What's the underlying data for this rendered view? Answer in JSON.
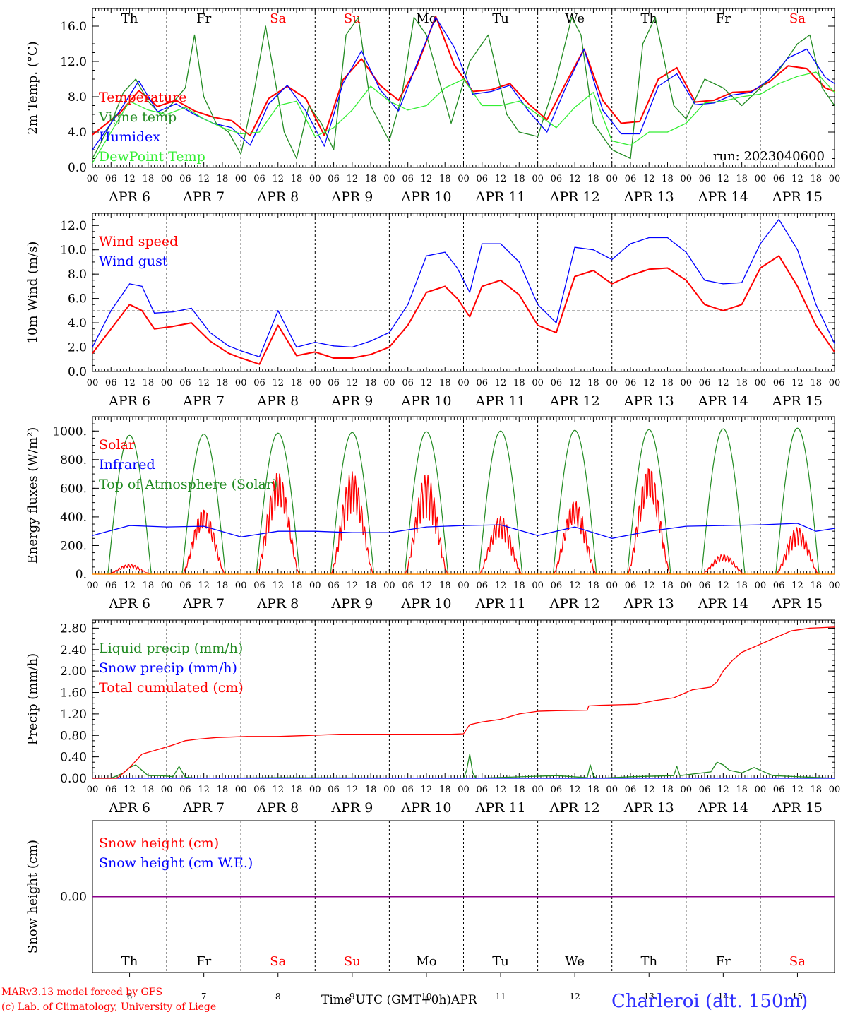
{
  "meta": {
    "run_label": "run: 2023040600",
    "credit_line1": "MARv3.13 model forced by GFS",
    "credit_line2": "(c) Lab. of Climatology, University of Liege",
    "time_axis_label": "Time UTC (GMT+0h)",
    "month_label": "APR",
    "station": "Charleroi (alt. 150m)"
  },
  "colors": {
    "red": "#ff0000",
    "green": "#228b22",
    "blue": "#0000ff",
    "lightgreen": "#33ee33",
    "weekend": "#ff0000",
    "purple": "#8b008b"
  },
  "days": {
    "names": [
      "Th",
      "Fr",
      "Sa",
      "Su",
      "Mo",
      "Tu",
      "We",
      "Th",
      "Fr",
      "Sa"
    ],
    "weekend": [
      false,
      false,
      true,
      true,
      false,
      false,
      false,
      false,
      false,
      true
    ],
    "dates": [
      "6",
      "7",
      "8",
      "9",
      "10",
      "11",
      "12",
      "13",
      "14",
      "15"
    ],
    "date_labels": [
      "APR  6",
      "APR  7",
      "APR  8",
      "APR  9",
      "APR 10",
      "APR 11",
      "APR 12",
      "APR 13",
      "APR 14",
      "APR 15"
    ],
    "hour_ticks": [
      "00",
      "06",
      "12",
      "18"
    ],
    "end_tick": "00"
  },
  "chart_data": [
    {
      "type": "line",
      "ylabel": "2m Temp. (°C)",
      "x_unit": "hours since 2023-04-06 00 UTC",
      "ylim": [
        0,
        18
      ],
      "yticks": [
        0,
        4,
        8,
        12,
        16
      ],
      "ytick_labels": [
        "0.0",
        "4.0",
        "8.0",
        "12.0",
        "16.0"
      ],
      "series": [
        {
          "name": "Temperature",
          "color": "#ff0000",
          "x": [
            0,
            9,
            15,
            21,
            27,
            33,
            39,
            45,
            51,
            57,
            63,
            69,
            75,
            81,
            87,
            93,
            99,
            105,
            111,
            117,
            123,
            129,
            135,
            141,
            147,
            153,
            159,
            165,
            171,
            177,
            183,
            189,
            195,
            201,
            207,
            213,
            219,
            225,
            231,
            237,
            240
          ],
          "y": [
            3.7,
            6.2,
            8.7,
            6.9,
            7.6,
            6.4,
            5.7,
            5.3,
            3.6,
            7.8,
            9.2,
            7.8,
            3.6,
            9.9,
            12.3,
            9.3,
            7.6,
            11.5,
            17.1,
            11.6,
            8.6,
            8.8,
            9.5,
            7.2,
            5.4,
            9.5,
            13.4,
            7.6,
            5.0,
            5.2,
            10.0,
            11.3,
            7.4,
            7.6,
            8.5,
            8.6,
            9.7,
            11.5,
            11.2,
            9.0,
            8.6
          ]
        },
        {
          "name": "Vigne temp",
          "color": "#228b22",
          "x": [
            0,
            6,
            10,
            14,
            18,
            22,
            24,
            30,
            33,
            36,
            40,
            44,
            48,
            52,
            56,
            62,
            66,
            70,
            74,
            78,
            82,
            86,
            90,
            96,
            100,
            104,
            108,
            112,
            116,
            122,
            128,
            134,
            138,
            144,
            150,
            155,
            158,
            162,
            168,
            174,
            178,
            182,
            188,
            192,
            198,
            204,
            210,
            216,
            222,
            228,
            232,
            236,
            240
          ],
          "y": [
            1.0,
            5.0,
            8.5,
            10.0,
            7.5,
            6.0,
            6.5,
            9.0,
            15.0,
            8.0,
            5.0,
            4.0,
            1.5,
            8.0,
            16.0,
            4.0,
            1.0,
            7.0,
            5.0,
            2.0,
            15.0,
            17.0,
            7.0,
            3.0,
            8.0,
            17.0,
            15.0,
            10.0,
            5.0,
            12.0,
            15.0,
            6.0,
            4.0,
            3.5,
            10.0,
            17.0,
            15.0,
            5.0,
            2.0,
            1.0,
            14.0,
            17.0,
            7.0,
            5.5,
            10.0,
            9.0,
            7.0,
            9.0,
            11.0,
            14.0,
            15.0,
            9.0,
            7.0
          ]
        },
        {
          "name": "Humidex",
          "color": "#0000ff",
          "x": [
            0,
            9,
            15,
            21,
            27,
            33,
            39,
            45,
            51,
            57,
            63,
            69,
            75,
            81,
            87,
            93,
            99,
            105,
            111,
            117,
            123,
            129,
            135,
            141,
            147,
            153,
            159,
            165,
            171,
            177,
            183,
            189,
            195,
            201,
            207,
            213,
            219,
            225,
            231,
            237,
            240
          ],
          "y": [
            2.0,
            6.5,
            9.8,
            6.3,
            7.2,
            6.0,
            5.0,
            4.5,
            2.5,
            7.2,
            9.3,
            6.4,
            2.4,
            9.5,
            13.2,
            8.8,
            6.4,
            11.8,
            17.0,
            13.6,
            8.3,
            8.6,
            9.3,
            6.4,
            4.0,
            9.0,
            13.4,
            6.5,
            3.8,
            3.8,
            9.2,
            10.6,
            7.1,
            7.3,
            8.2,
            8.5,
            10.0,
            12.4,
            13.4,
            10.2,
            9.5
          ]
        },
        {
          "name": "DewPoint Temp",
          "color": "#33ee33",
          "x": [
            0,
            12,
            18,
            24,
            30,
            36,
            42,
            48,
            54,
            60,
            66,
            72,
            78,
            84,
            90,
            96,
            102,
            108,
            114,
            120,
            126,
            132,
            138,
            144,
            150,
            156,
            162,
            168,
            174,
            180,
            186,
            192,
            198,
            204,
            210,
            216,
            222,
            228,
            234,
            240
          ],
          "y": [
            0.5,
            7.5,
            6.5,
            6.0,
            6.8,
            5.5,
            4.5,
            3.8,
            4.0,
            7.0,
            7.5,
            3.5,
            4.5,
            6.5,
            9.2,
            7.5,
            6.5,
            7.0,
            9.0,
            10.0,
            7.0,
            7.0,
            7.5,
            6.0,
            4.5,
            6.8,
            8.5,
            3.0,
            2.5,
            4.0,
            4.0,
            5.0,
            7.3,
            7.5,
            8.0,
            8.3,
            9.5,
            10.3,
            10.8,
            8.5
          ]
        }
      ],
      "weekend_day_label_color": "#ff0000"
    },
    {
      "type": "line",
      "ylabel": "10m Wind (m/s)",
      "x_unit": "hours since 2023-04-06 00 UTC",
      "ylim": [
        0,
        13
      ],
      "yticks": [
        0,
        2,
        4,
        6,
        8,
        10,
        12
      ],
      "ytick_labels": [
        "0.0",
        "2.0",
        "4.0",
        "6.0",
        "8.0",
        "10.0",
        "12.0"
      ],
      "reference_line": 5.0,
      "series": [
        {
          "name": "Wind speed",
          "color": "#ff0000",
          "x": [
            0,
            6,
            12,
            16,
            20,
            26,
            32,
            38,
            44,
            48,
            54,
            60,
            66,
            72,
            78,
            84,
            90,
            96,
            102,
            108,
            114,
            118,
            122,
            126,
            132,
            138,
            144,
            150,
            156,
            162,
            168,
            174,
            180,
            186,
            192,
            198,
            204,
            210,
            216,
            222,
            228,
            234,
            240
          ],
          "y": [
            1.5,
            3.5,
            5.5,
            5.0,
            3.5,
            3.7,
            4.0,
            2.5,
            1.5,
            1.1,
            0.6,
            3.8,
            1.3,
            1.6,
            1.1,
            1.1,
            1.4,
            2.0,
            3.8,
            6.5,
            7.0,
            6.0,
            4.5,
            7.0,
            7.5,
            6.3,
            3.8,
            3.2,
            7.8,
            8.3,
            7.2,
            7.9,
            8.4,
            8.5,
            7.5,
            5.5,
            5.0,
            5.5,
            8.5,
            9.5,
            7.0,
            3.8,
            1.6
          ]
        },
        {
          "name": "Wind gust",
          "color": "#0000ff",
          "x": [
            0,
            6,
            12,
            16,
            20,
            26,
            32,
            38,
            44,
            48,
            54,
            60,
            66,
            72,
            78,
            84,
            90,
            96,
            102,
            108,
            114,
            118,
            122,
            126,
            132,
            138,
            144,
            150,
            156,
            162,
            168,
            174,
            180,
            186,
            192,
            198,
            204,
            210,
            216,
            222,
            228,
            234,
            240
          ],
          "y": [
            2.0,
            5.0,
            7.2,
            7.0,
            4.8,
            4.9,
            5.2,
            3.2,
            2.1,
            1.7,
            1.2,
            5.0,
            2.0,
            2.4,
            2.1,
            2.0,
            2.5,
            3.2,
            5.5,
            9.5,
            9.8,
            8.5,
            6.5,
            10.5,
            10.5,
            9.0,
            5.5,
            4.0,
            10.2,
            10.0,
            9.2,
            10.5,
            11.0,
            11.0,
            9.8,
            7.5,
            7.2,
            7.3,
            10.5,
            12.5,
            10.0,
            5.5,
            2.3
          ]
        }
      ]
    },
    {
      "type": "line",
      "ylabel": "Energy fluxes (W/m²)",
      "x_unit": "hours since 2023-04-06 00 UTC",
      "ylim": [
        0,
        1100
      ],
      "yticks": [
        0,
        200,
        400,
        600,
        800,
        1000
      ],
      "ytick_labels": [
        "0.",
        "200.",
        "400.",
        "600.",
        "800.",
        "1000."
      ],
      "series": [
        {
          "name": "Solar",
          "color": "#ff0000",
          "daily_peak": [
            70,
            460,
            720,
            720,
            700,
            410,
            520,
            760,
            140,
            330
          ]
        },
        {
          "name": "Infrared",
          "color": "#0000ff",
          "x": [
            0,
            12,
            24,
            36,
            48,
            60,
            72,
            84,
            96,
            108,
            120,
            132,
            144,
            156,
            168,
            180,
            192,
            204,
            216,
            228,
            234,
            240
          ],
          "y": [
            270,
            340,
            330,
            335,
            260,
            300,
            300,
            290,
            290,
            330,
            340,
            345,
            270,
            330,
            250,
            300,
            335,
            340,
            345,
            355,
            300,
            320
          ]
        },
        {
          "name": "Top of Atmosphere (Solar)",
          "color": "#228b22",
          "daily_peak": [
            970,
            978,
            985,
            990,
            995,
            1000,
            1005,
            1010,
            1015,
            1020
          ]
        }
      ]
    },
    {
      "type": "line",
      "ylabel": "Precip (mm/h)",
      "x_unit": "hours since 2023-04-06 00 UTC",
      "ylim": [
        0,
        2.95
      ],
      "yticks": [
        0,
        0.4,
        0.8,
        1.2,
        1.6,
        2.0,
        2.4,
        2.8
      ],
      "ytick_labels": [
        "0.00",
        "0.40",
        "0.80",
        "1.20",
        "1.60",
        "2.00",
        "2.40",
        "2.80"
      ],
      "series": [
        {
          "name": "Liquid precip (mm/h)",
          "color": "#228b22",
          "x": [
            0,
            6,
            10,
            12,
            14,
            16,
            18,
            22,
            26,
            28,
            30,
            34,
            60,
            120,
            121,
            122,
            123,
            124,
            150,
            160,
            161,
            162,
            163,
            175,
            188,
            189,
            190,
            200,
            202,
            204,
            206,
            210,
            214,
            220,
            240
          ],
          "y": [
            0,
            0,
            0.1,
            0.2,
            0.25,
            0.15,
            0.05,
            0.05,
            0.03,
            0.22,
            0.02,
            0,
            0.01,
            0,
            0.15,
            0.45,
            0.1,
            0,
            0.05,
            0.01,
            0.25,
            0.05,
            0,
            0.03,
            0.05,
            0.22,
            0.05,
            0.12,
            0.3,
            0.25,
            0.15,
            0.1,
            0.2,
            0.05,
            0
          ]
        },
        {
          "name": "Snow precip (mm/h)",
          "color": "#0000ff",
          "x": [
            0,
            240
          ],
          "y": [
            0,
            0
          ]
        },
        {
          "name": "Total cumulated (cm)",
          "color": "#ff0000",
          "x": [
            0,
            8,
            12,
            16,
            22,
            26,
            30,
            34,
            40,
            50,
            60,
            70,
            80,
            90,
            100,
            110,
            116,
            120,
            122,
            126,
            132,
            138,
            144,
            150,
            160,
            160.5,
            164,
            176,
            182,
            188,
            192,
            194,
            200,
            202,
            204,
            207,
            210,
            214,
            220,
            226,
            232,
            240
          ],
          "y": [
            0,
            0,
            0.2,
            0.45,
            0.55,
            0.62,
            0.7,
            0.73,
            0.76,
            0.78,
            0.78,
            0.8,
            0.82,
            0.82,
            0.82,
            0.82,
            0.82,
            0.83,
            1.0,
            1.05,
            1.1,
            1.2,
            1.25,
            1.26,
            1.27,
            1.35,
            1.36,
            1.38,
            1.45,
            1.5,
            1.6,
            1.65,
            1.7,
            1.8,
            2.0,
            2.2,
            2.35,
            2.45,
            2.6,
            2.75,
            2.8,
            2.82
          ]
        }
      ]
    },
    {
      "type": "line",
      "ylabel": "Snow height (cm)",
      "x_unit": "hours since 2023-04-06 00 UTC",
      "ylim": [
        -1,
        1
      ],
      "yticks": [
        0
      ],
      "ytick_labels": [
        "0.00"
      ],
      "series": [
        {
          "name": "Snow height (cm)",
          "color": "#ff0000",
          "x": [
            0,
            240
          ],
          "y": [
            0,
            0
          ]
        },
        {
          "name": "Snow height (cm W.E.)",
          "color": "#0000ff",
          "x": [
            0,
            240
          ],
          "y": [
            0,
            0
          ]
        }
      ]
    }
  ]
}
